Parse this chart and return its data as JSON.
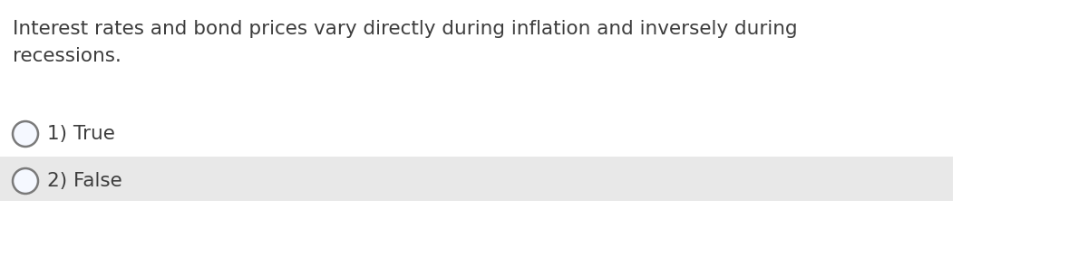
{
  "question_text_line1": "Interest rates and bond prices vary directly during inflation and inversely during",
  "question_text_line2": "recessions.",
  "options": [
    {
      "number": "1)",
      "label": "True",
      "highlight": false
    },
    {
      "number": "2)",
      "label": "False",
      "highlight": true
    }
  ],
  "background_color": "#ffffff",
  "option_highlight_color": "#e8e8e8",
  "text_color": "#3d3d3d",
  "circle_edge_color": "#7a7a7a",
  "circle_fill_color": "#f5f8ff",
  "font_size_question": 15.5,
  "font_size_options": 15.5,
  "fig_width": 12.0,
  "fig_height": 2.95,
  "dpi": 100
}
